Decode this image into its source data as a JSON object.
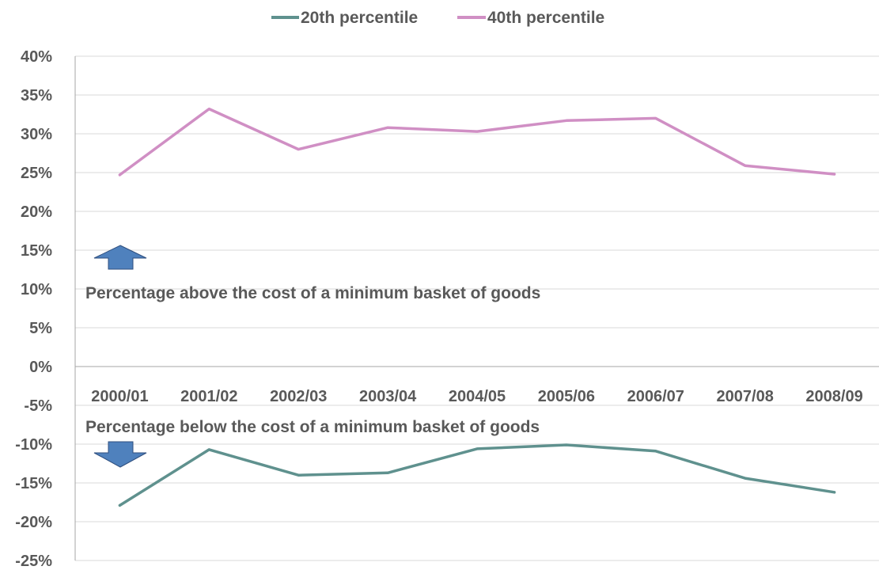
{
  "chart_data": {
    "type": "line",
    "categories": [
      "2000/01",
      "2001/02",
      "2002/03",
      "2003/04",
      "2004/05",
      "2005/06",
      "2006/07",
      "2007/08",
      "2008/09"
    ],
    "series": [
      {
        "name": "20th percentile",
        "color": "#5f918e",
        "values": [
          -17.9,
          -10.7,
          -14.0,
          -13.7,
          -10.6,
          -10.1,
          -10.9,
          -14.4,
          -16.2
        ]
      },
      {
        "name": "40th percentile",
        "color": "#d08fc4",
        "values": [
          24.7,
          33.2,
          28.0,
          30.8,
          30.3,
          31.7,
          32.0,
          25.9,
          24.8
        ]
      }
    ],
    "ylim": [
      -25,
      40
    ],
    "yticks": [
      40,
      35,
      30,
      25,
      20,
      15,
      10,
      5,
      0,
      -5,
      -10,
      -15,
      -20,
      -25
    ],
    "ytick_suffix": "%",
    "grid": true,
    "legend_position": "top",
    "annotations": [
      {
        "text": "Percentage above the cost of a minimum basket of goods",
        "arrow": "up"
      },
      {
        "text": "Percentage below the cost of a minimum basket of goods",
        "arrow": "down"
      }
    ],
    "arrow_color": "#4f81bd"
  }
}
